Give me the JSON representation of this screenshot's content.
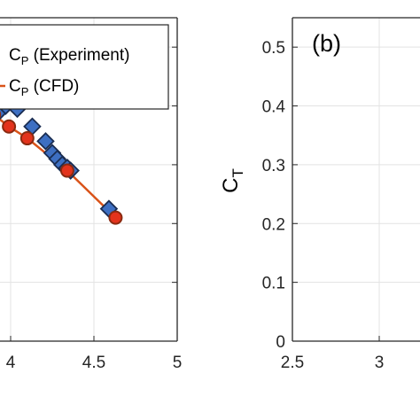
{
  "chart_data": [
    {
      "panel": "a",
      "type": "line",
      "xlim": [
        3,
        5
      ],
      "ylim": [
        0,
        0.55
      ],
      "grid": true,
      "xticks": [
        {
          "value": 4,
          "label": "4"
        },
        {
          "value": 4.5,
          "label": "4.5"
        },
        {
          "value": 5,
          "label": "5"
        }
      ],
      "legend": {
        "placement": "top-right",
        "entries": [
          {
            "symbol": "C",
            "subscript": "P",
            "suffix": " (Experiment)"
          },
          {
            "symbol": "C",
            "subscript": "P",
            "suffix": " (CFD)"
          }
        ]
      },
      "series": [
        {
          "key": "experiment",
          "marker": "diamond",
          "color": "#3d6fc2",
          "edge": "#1a2d52",
          "x": [
            3.93,
            3.97,
            4.01,
            4.04,
            4.13,
            4.21,
            4.25,
            4.28,
            4.31,
            4.34,
            4.36,
            4.59
          ],
          "y": [
            0.39,
            0.4,
            0.405,
            0.395,
            0.365,
            0.34,
            0.32,
            0.31,
            0.3,
            0.295,
            0.29,
            0.225
          ]
        },
        {
          "key": "cfd",
          "marker": "circle",
          "color": "#e3331c",
          "edge": "#8a2a10",
          "line_color": "#d95319",
          "x": [
            3.9,
            3.99,
            4.1,
            4.34,
            4.63
          ],
          "y": [
            0.385,
            0.365,
            0.345,
            0.29,
            0.21
          ]
        }
      ]
    },
    {
      "panel": "b",
      "type": "line",
      "panel_label": "(b)",
      "ylabel": {
        "symbol": "C",
        "subscript": "T"
      },
      "xlim": [
        2.5,
        3.5
      ],
      "ylim": [
        0,
        0.55
      ],
      "grid": true,
      "xticks": [
        {
          "value": 2.5,
          "label": "2.5"
        },
        {
          "value": 3,
          "label": "3"
        }
      ],
      "yticks": [
        {
          "value": 0,
          "label": "0"
        },
        {
          "value": 0.1,
          "label": "0.1"
        },
        {
          "value": 0.2,
          "label": "0.2"
        },
        {
          "value": 0.3,
          "label": "0.3"
        },
        {
          "value": 0.4,
          "label": "0.4"
        },
        {
          "value": 0.5,
          "label": "0.5"
        }
      ],
      "series": []
    }
  ]
}
